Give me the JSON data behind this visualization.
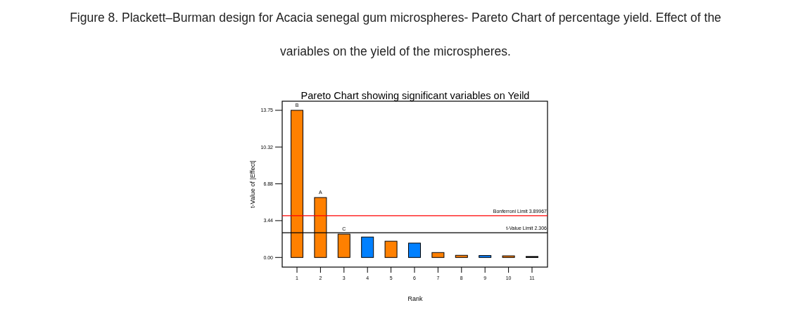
{
  "chart_data": {
    "type": "bar",
    "title": "Figure 8. Plackett–Burman design for Acacia senegal gum microspheres- Pareto Chart of percentage yield. Effect of the variables on the yield of the microspheres.",
    "subtitle": "Pareto Chart showing significant variables on Yeild",
    "xlabel": "Rank",
    "ylabel": "t-Value of |Effect|",
    "categories": [
      "1",
      "2",
      "3",
      "4",
      "5",
      "6",
      "7",
      "8",
      "9",
      "10",
      "11"
    ],
    "values": [
      13.75,
      5.6,
      2.18,
      1.91,
      1.52,
      1.34,
      0.46,
      0.2,
      0.18,
      0.15,
      0.09
    ],
    "colors": [
      "#ff8000",
      "#ff8000",
      "#ff8000",
      "#0080ff",
      "#ff8000",
      "#0080ff",
      "#ff8000",
      "#ff8000",
      "#0080ff",
      "#ff8000",
      "#000000"
    ],
    "value_labels": [
      "B",
      "A",
      "C",
      null,
      null,
      null,
      null,
      null,
      null,
      null,
      null
    ],
    "ylim": [
      -0.9,
      14.6
    ],
    "yticks": [
      {
        "value": 0,
        "label": "0.00"
      },
      {
        "value": 3.44,
        "label": "3.44"
      },
      {
        "value": 6.88,
        "label": "6.88"
      },
      {
        "value": 10.32,
        "label": "10.32"
      },
      {
        "value": 13.75,
        "label": "13.75"
      }
    ],
    "ref_lines": [
      {
        "axis": "y",
        "value": 3.89967,
        "label": "Bonferroni Limit 3.89967",
        "color": "#ff0000"
      },
      {
        "axis": "y",
        "value": 2.306,
        "label": "t-Value Limit 2.306",
        "color": "#000000"
      }
    ],
    "grid": false
  }
}
